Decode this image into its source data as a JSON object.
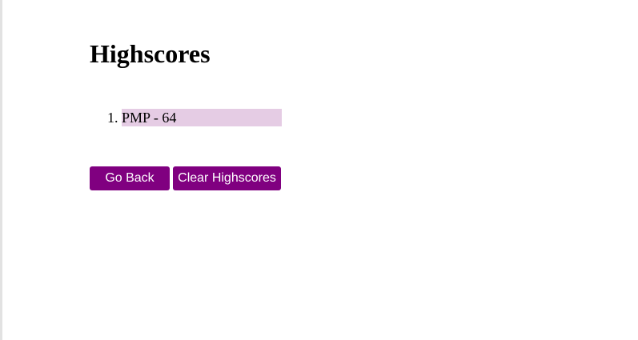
{
  "page": {
    "title": "Highscores"
  },
  "highscores": [
    {
      "text": "PMP - 64"
    }
  ],
  "buttons": {
    "back_label": "Go Back",
    "clear_label": "Clear Highscores"
  },
  "colors": {
    "accent": "#800080",
    "highlight": "#e5cce4"
  }
}
